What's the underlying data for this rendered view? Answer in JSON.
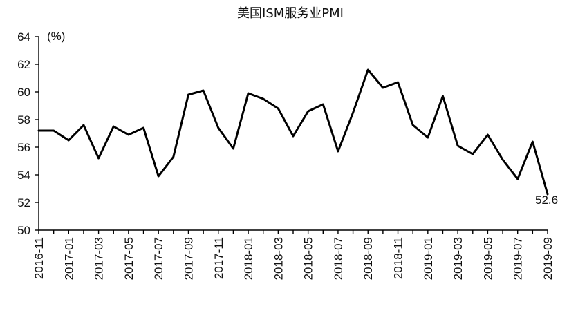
{
  "chart_data": {
    "type": "line",
    "title": "美国ISM服务业PMI",
    "unit_label": "(%)",
    "xlabel": "",
    "ylabel": "",
    "ylim": [
      50,
      64
    ],
    "yticks": [
      50,
      52,
      54,
      56,
      58,
      60,
      62,
      64
    ],
    "grid": false,
    "legend": "none",
    "x": [
      "2016-11",
      "2016-12",
      "2017-01",
      "2017-02",
      "2017-03",
      "2017-04",
      "2017-05",
      "2017-06",
      "2017-07",
      "2017-08",
      "2017-09",
      "2017-10",
      "2017-11",
      "2017-12",
      "2018-01",
      "2018-02",
      "2018-03",
      "2018-04",
      "2018-05",
      "2018-06",
      "2018-07",
      "2018-08",
      "2018-09",
      "2018-10",
      "2018-11",
      "2018-12",
      "2019-01",
      "2019-02",
      "2019-03",
      "2019-04",
      "2019-05",
      "2019-06",
      "2019-07",
      "2019-08",
      "2019-09"
    ],
    "xtick_labels": [
      "2016-11",
      "2017-01",
      "2017-03",
      "2017-05",
      "2017-07",
      "2017-09",
      "2017-11",
      "2018-01",
      "2018-03",
      "2018-05",
      "2018-07",
      "2018-09",
      "2018-11",
      "2019-01",
      "2019-03",
      "2019-05",
      "2019-07",
      "2019-09"
    ],
    "series": [
      {
        "values": [
          57.2,
          57.2,
          56.5,
          57.6,
          55.2,
          57.5,
          56.9,
          57.4,
          53.9,
          55.3,
          59.8,
          60.1,
          57.4,
          55.9,
          59.9,
          59.5,
          58.8,
          56.8,
          58.6,
          59.1,
          55.7,
          58.5,
          61.6,
          60.3,
          60.7,
          57.6,
          56.7,
          59.7,
          56.1,
          55.5,
          56.9,
          55.1,
          53.7,
          56.4,
          52.6
        ]
      }
    ],
    "annotations": [
      {
        "text": "52.6",
        "x": "2019-09"
      }
    ]
  }
}
